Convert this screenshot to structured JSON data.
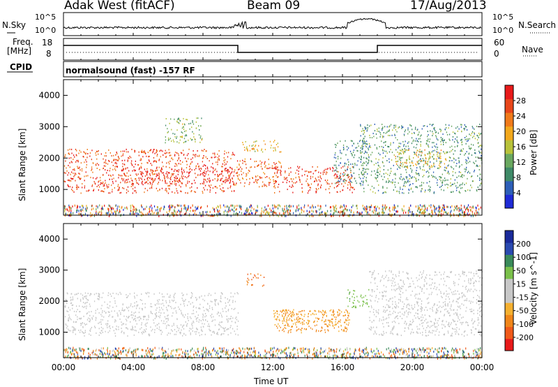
{
  "header": {
    "station": "Adak West (fitACF)",
    "beam": "Beam 09",
    "date": "17/Aug/2013"
  },
  "noise_panel": {
    "left_label": "N.Sky",
    "right_label": "N.Search",
    "left_ticks": [
      "10^5",
      "10^0"
    ],
    "right_ticks": [
      "10^5",
      "10^0"
    ]
  },
  "freq_panel": {
    "left_label_1": "Freq.",
    "left_label_2": "[MHz]",
    "left_ticks": [
      "18",
      "8"
    ],
    "right_label": "Nave",
    "right_ticks": [
      "60",
      "0"
    ],
    "freq_trace": {
      "description": "step trace",
      "segments": [
        {
          "from_h": 0,
          "to_h": 10,
          "level": "high"
        },
        {
          "from_h": 10,
          "to_h": 18,
          "level": "low"
        },
        {
          "from_h": 18,
          "to_h": 24,
          "level": "high"
        }
      ]
    }
  },
  "cpid": {
    "label": "CPID",
    "text": "normalsound (fast) -157 RF"
  },
  "axes": {
    "x_ticks": [
      "00:00",
      "04:00",
      "08:00",
      "12:00",
      "16:00",
      "20:00",
      "00:00"
    ],
    "x_label": "Time UT",
    "y_label": "Slant Range [km]",
    "y_ticks": [
      "1000",
      "2000",
      "3000",
      "4000"
    ]
  },
  "colors": {
    "power": [
      "#1f2bd6",
      "#2d5fb8",
      "#3f8a68",
      "#6aa860",
      "#b8c23a",
      "#f2a81c",
      "#f07a1a",
      "#e8461a",
      "#e81a1a"
    ],
    "velocity": [
      "#e81a1a",
      "#f05a1a",
      "#f0861a",
      "#f4b030",
      "#c8c8c8",
      "#c8c8c8",
      "#7ac04a",
      "#3a8a5a",
      "#2a4ab0",
      "#1a2a9a"
    ]
  },
  "chart_data": [
    {
      "type": "heatmap",
      "title": "Power",
      "xlabel": "Time UT",
      "ylabel": "Slant Range [km]",
      "xlim": [
        0,
        24
      ],
      "ylim": [
        180,
        4500
      ],
      "colorbar": {
        "label": "Power [dB]",
        "ticks": [
          "4",
          "8",
          "12",
          "16",
          "20",
          "24",
          "28"
        ],
        "range": [
          0,
          30
        ]
      },
      "regions": [
        {
          "t0": 0.0,
          "t1": 9.8,
          "r0": 900,
          "r1": 2300,
          "level": 25
        },
        {
          "t0": 3.2,
          "t1": 9.8,
          "r0": 1200,
          "r1": 1700,
          "level": 29
        },
        {
          "t0": 5.8,
          "t1": 8.0,
          "r0": 2500,
          "r1": 3300,
          "level": 12
        },
        {
          "t0": 9.8,
          "t1": 12.5,
          "r0": 1100,
          "r1": 2000,
          "level": 24
        },
        {
          "t0": 10.2,
          "t1": 12.5,
          "r0": 2200,
          "r1": 2600,
          "level": 18
        },
        {
          "t0": 12.0,
          "t1": 16.7,
          "r0": 900,
          "r1": 1750,
          "level": 26
        },
        {
          "t0": 15.5,
          "t1": 17.5,
          "r0": 1200,
          "r1": 2600,
          "level": 8
        },
        {
          "t0": 17.0,
          "t1": 24.0,
          "r0": 900,
          "r1": 3100,
          "level": 10
        },
        {
          "t0": 19.0,
          "t1": 22.0,
          "r0": 1700,
          "r1": 2300,
          "level": 18
        }
      ]
    },
    {
      "type": "heatmap",
      "title": "Velocity",
      "xlabel": "Time UT",
      "ylabel": "Slant Range [km]",
      "xlim": [
        0,
        24
      ],
      "ylim": [
        180,
        4500
      ],
      "colorbar": {
        "label": "Velocity [m s^-1]",
        "ticks": [
          "-200",
          "-100",
          "-50",
          "-15",
          "15",
          "50",
          "100",
          "200"
        ],
        "range": [
          -250,
          250
        ]
      },
      "regions": [
        {
          "t0": 0.0,
          "t1": 10.0,
          "r0": 900,
          "r1": 2300,
          "level": 0
        },
        {
          "t0": 10.5,
          "t1": 11.5,
          "r0": 2500,
          "r1": 2900,
          "level": -100
        },
        {
          "t0": 12.2,
          "t1": 16.4,
          "r0": 1000,
          "r1": 1750,
          "level": -60
        },
        {
          "t0": 12.0,
          "t1": 16.4,
          "r0": 1200,
          "r1": 1750,
          "level": -40
        },
        {
          "t0": 16.2,
          "t1": 17.5,
          "r0": 1800,
          "r1": 2400,
          "level": 40
        },
        {
          "t0": 17.5,
          "t1": 24.0,
          "r0": 900,
          "r1": 3000,
          "level": 0
        }
      ]
    }
  ]
}
